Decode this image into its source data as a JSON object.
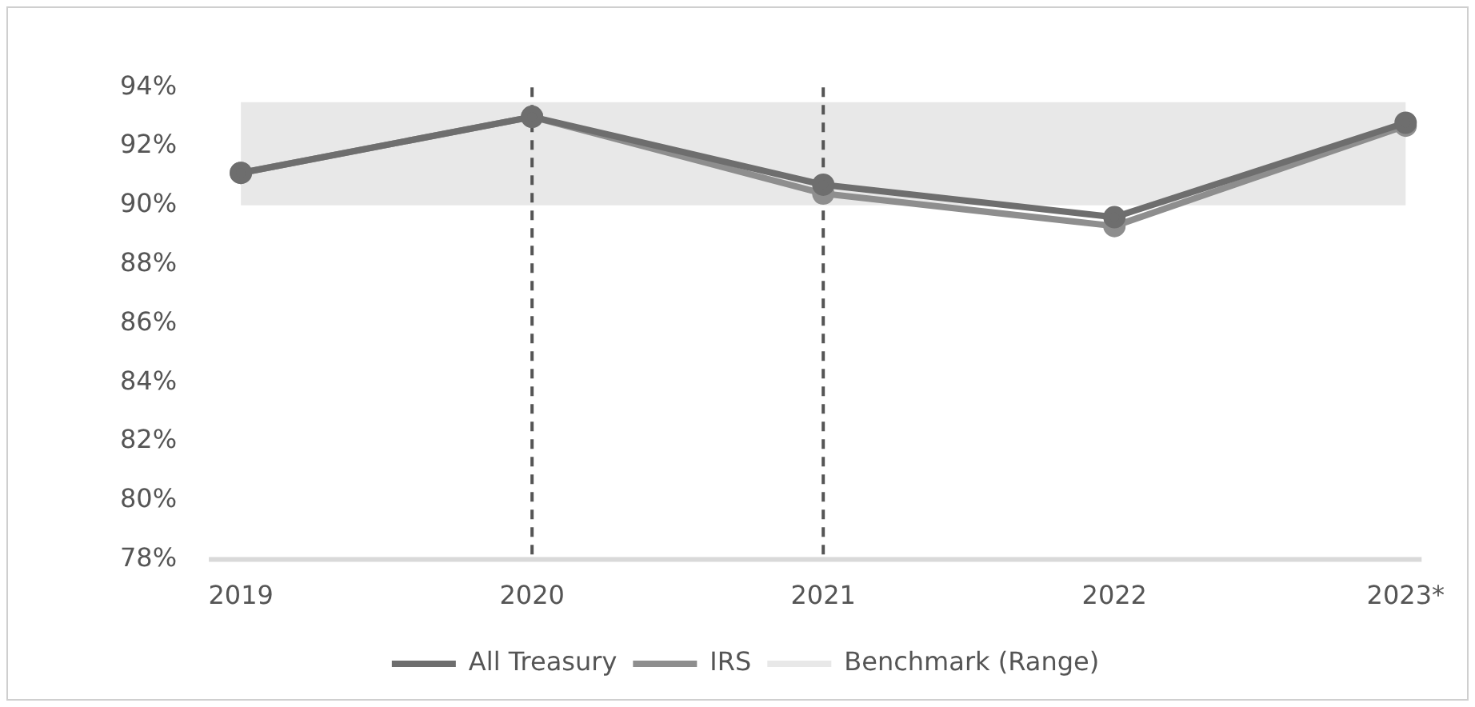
{
  "chart_data": {
    "type": "line",
    "categories": [
      "2019",
      "2020",
      "2021",
      "2022",
      "2023*"
    ],
    "series": [
      {
        "name": "All Treasury",
        "color": "#6e6e6e",
        "values": [
          91.1,
          93.0,
          90.7,
          89.6,
          92.8
        ]
      },
      {
        "name": "IRS",
        "color": "#8e8e8e",
        "values": [
          91.1,
          93.0,
          90.4,
          89.3,
          92.7
        ]
      }
    ],
    "bands": [
      {
        "axis": "y",
        "from": 90,
        "to": 93.5,
        "label": "Benchmark (Range)",
        "color": "#e8e8e8"
      }
    ],
    "ref_lines": [
      {
        "axis": "x",
        "value": "2020",
        "line_style": "dashed",
        "color": "#555555"
      },
      {
        "axis": "x",
        "value": "2021",
        "line_style": "dashed",
        "color": "#555555"
      }
    ],
    "ylim": [
      78,
      94
    ],
    "yticks": [
      {
        "value": 78,
        "label": "78%"
      },
      {
        "value": 80,
        "label": "80%"
      },
      {
        "value": 82,
        "label": "82%"
      },
      {
        "value": 84,
        "label": "84%"
      },
      {
        "value": 86,
        "label": "86%"
      },
      {
        "value": 88,
        "label": "88%"
      },
      {
        "value": 90,
        "label": "90%"
      },
      {
        "value": 92,
        "label": "92%"
      },
      {
        "value": 94,
        "label": "94%"
      }
    ],
    "grid": false,
    "legend": "bottom",
    "marker": "circle",
    "line_style": "solid"
  }
}
